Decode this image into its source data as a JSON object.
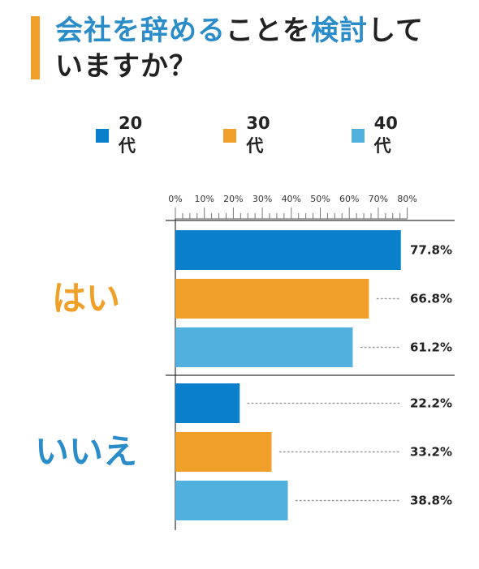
{
  "title": {
    "parts": [
      {
        "text": "会社を辞める",
        "color": "#2a8cc8"
      },
      {
        "text": "ことを",
        "color": "#222222"
      },
      {
        "text": "検討",
        "color": "#2a8cc8"
      },
      {
        "text": "して",
        "color": "#222222"
      },
      {
        "text": "いますか？",
        "color": "#222222"
      }
    ],
    "accent_color": "#f0a028"
  },
  "chart_data": {
    "type": "bar",
    "orientation": "horizontal",
    "categories": [
      "はい",
      "いいえ"
    ],
    "category_colors": [
      "#f0a028",
      "#2a8cc8"
    ],
    "series": [
      {
        "name": "20代",
        "color": "#0a7fcb",
        "values": [
          77.8,
          22.2
        ]
      },
      {
        "name": "30代",
        "color": "#f0a028",
        "values": [
          66.8,
          33.2
        ]
      },
      {
        "name": "40代",
        "color": "#52b0de",
        "values": [
          61.2,
          38.8
        ]
      }
    ],
    "xlim": [
      0,
      80
    ],
    "xticks": [
      0,
      10,
      20,
      30,
      40,
      50,
      60,
      70,
      80
    ],
    "xtick_labels": [
      "0%",
      "10%",
      "20%",
      "30%",
      "40%",
      "50%",
      "60%",
      "70%",
      "80%"
    ],
    "value_labels": [
      [
        "77.8%",
        "22.2%"
      ],
      [
        "66.8%",
        "33.2%"
      ],
      [
        "61.2%",
        "38.8%"
      ]
    ],
    "legend_position": "top",
    "grid": false
  }
}
